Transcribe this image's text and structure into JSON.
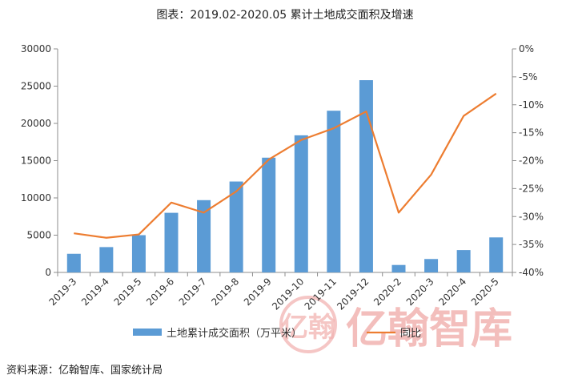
{
  "title": "图表：2019.02-2020.05 累计土地成交面积及增速",
  "source": "资料来源：亿翰智库、国家统计局",
  "watermark": {
    "text": "亿翰智库",
    "seal_text": "亿翰",
    "color": "#f2b3b1"
  },
  "chart_data": {
    "type": "bar",
    "categories": [
      "2019-3",
      "2019-4",
      "2019-5",
      "2019-6",
      "2019-7",
      "2019-8",
      "2019-9",
      "2019-10",
      "2019-11",
      "2019-12",
      "2020-2",
      "2020-3",
      "2020-4",
      "2020-5"
    ],
    "series": [
      {
        "name": "土地累计成交面积（万平米）",
        "type": "bar",
        "axis": "left",
        "color": "#5b9bd5",
        "values": [
          2500,
          3400,
          5000,
          8000,
          9700,
          12200,
          15400,
          18400,
          21700,
          25800,
          1000,
          1800,
          3000,
          4700
        ]
      },
      {
        "name": "同比",
        "type": "line",
        "axis": "right",
        "color": "#ed7d31",
        "values": [
          -33.0,
          -33.8,
          -33.2,
          -27.5,
          -29.3,
          -25.5,
          -19.8,
          -16.3,
          -14.2,
          -11.2,
          -29.3,
          -22.5,
          -12.0,
          -8.0
        ]
      }
    ],
    "y_left": {
      "ylim": [
        0,
        30000
      ],
      "ticks": [
        "0",
        "5000",
        "10000",
        "15000",
        "20000",
        "25000",
        "30000"
      ]
    },
    "y_right": {
      "ylim": [
        -40,
        0
      ],
      "ticks": [
        "-40%",
        "-35%",
        "-30%",
        "-25%",
        "-20%",
        "-15%",
        "-10%",
        "-5%",
        "0%"
      ]
    },
    "grid": false,
    "legend_position": "bottom"
  }
}
